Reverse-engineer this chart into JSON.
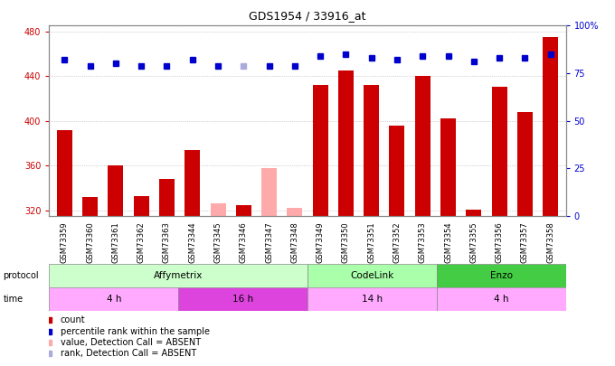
{
  "title": "GDS1954 / 33916_at",
  "samples": [
    "GSM73359",
    "GSM73360",
    "GSM73361",
    "GSM73362",
    "GSM73363",
    "GSM73344",
    "GSM73345",
    "GSM73346",
    "GSM73347",
    "GSM73348",
    "GSM73349",
    "GSM73350",
    "GSM73351",
    "GSM73352",
    "GSM73353",
    "GSM73354",
    "GSM73355",
    "GSM73356",
    "GSM73357",
    "GSM73358"
  ],
  "bar_values": [
    392,
    332,
    360,
    333,
    348,
    374,
    326,
    325,
    358,
    322,
    432,
    445,
    432,
    396,
    440,
    402,
    321,
    430,
    408,
    475
  ],
  "bar_absent": [
    false,
    false,
    false,
    false,
    false,
    false,
    true,
    false,
    true,
    true,
    false,
    false,
    false,
    false,
    false,
    false,
    false,
    false,
    false,
    false
  ],
  "blue_values": [
    82,
    79,
    80,
    79,
    79,
    82,
    79,
    79,
    79,
    79,
    84,
    85,
    83,
    82,
    84,
    84,
    81,
    83,
    83,
    85
  ],
  "blue_absent": [
    false,
    false,
    false,
    false,
    false,
    false,
    false,
    true,
    false,
    false,
    false,
    false,
    false,
    false,
    false,
    false,
    false,
    false,
    false,
    false
  ],
  "ylim_left": [
    315,
    485
  ],
  "ylim_right": [
    0,
    100
  ],
  "yticks_left": [
    320,
    360,
    400,
    440,
    480
  ],
  "yticks_right": [
    0,
    25,
    50,
    75,
    100
  ],
  "bar_color_normal": "#cc0000",
  "bar_color_absent": "#ffaaaa",
  "blue_color_normal": "#0000cc",
  "blue_color_absent": "#aaaadd",
  "protocol_groups": [
    {
      "label": "Affymetrix",
      "start": 0,
      "end": 10,
      "color": "#ccffcc"
    },
    {
      "label": "CodeLink",
      "start": 10,
      "end": 15,
      "color": "#aaffaa"
    },
    {
      "label": "Enzo",
      "start": 15,
      "end": 20,
      "color": "#44cc44"
    }
  ],
  "time_groups": [
    {
      "label": "4 h",
      "start": 0,
      "end": 5,
      "color": "#ffaaff"
    },
    {
      "label": "16 h",
      "start": 5,
      "end": 10,
      "color": "#dd44dd"
    },
    {
      "label": "14 h",
      "start": 10,
      "end": 15,
      "color": "#ffaaff"
    },
    {
      "label": "4 h",
      "start": 15,
      "end": 20,
      "color": "#ffaaff"
    }
  ],
  "grid_color": "#aaaaaa",
  "bg_color": "#ffffff",
  "plot_bg_color": "#ffffff",
  "axis_label_color_left": "#cc0000",
  "axis_label_color_right": "#0000cc"
}
